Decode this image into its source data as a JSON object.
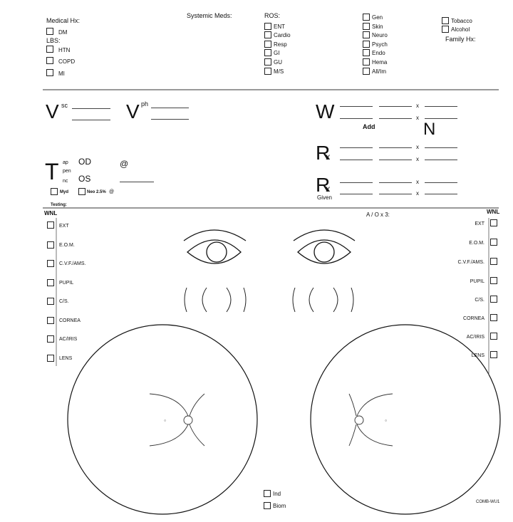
{
  "history": {
    "medical_hx": "Medical Hx:",
    "dm": "DM",
    "lbs": "LBS:",
    "htn": "HTN",
    "copd": "COPD",
    "mi": "MI",
    "systemic_meds": "Systemic Meds:",
    "ros": "ROS:",
    "ros_col1": [
      "ENT",
      "Cardio",
      "Resp",
      "GI",
      "GU",
      "M/S"
    ],
    "ros_col2": [
      "Gen",
      "Skin",
      "Neuro",
      "Psych",
      "Endo",
      "Hema",
      "All/Im"
    ],
    "tobacco": "Tobacco",
    "alcohol": "Alcohol",
    "family_hx": "Family Hx:"
  },
  "vision": {
    "v": "V",
    "sc": "sc",
    "ph": "ph",
    "w": "W",
    "x": "x",
    "add": "Add",
    "n": "N",
    "rx": "R",
    "given": "Given"
  },
  "tonometry": {
    "t": "T",
    "ap": "ap",
    "pen": "pen",
    "nc": "nc",
    "od": "OD",
    "os": "OS",
    "at": "@",
    "myd": "Myd",
    "neo": "Neo 2.5%",
    "testing": "Testing:"
  },
  "exam": {
    "wnl": "WNL",
    "ao": "A / O x 3:",
    "items": [
      "EXT",
      "E.O.M.",
      "C.V.F./AMS.",
      "PUPIL",
      "C/S.",
      "CORNEA",
      "AC/IRIS",
      "LENS"
    ]
  },
  "footer": {
    "ind": "Ind",
    "biom": "Biom",
    "form_code": "COMB-WU1"
  }
}
